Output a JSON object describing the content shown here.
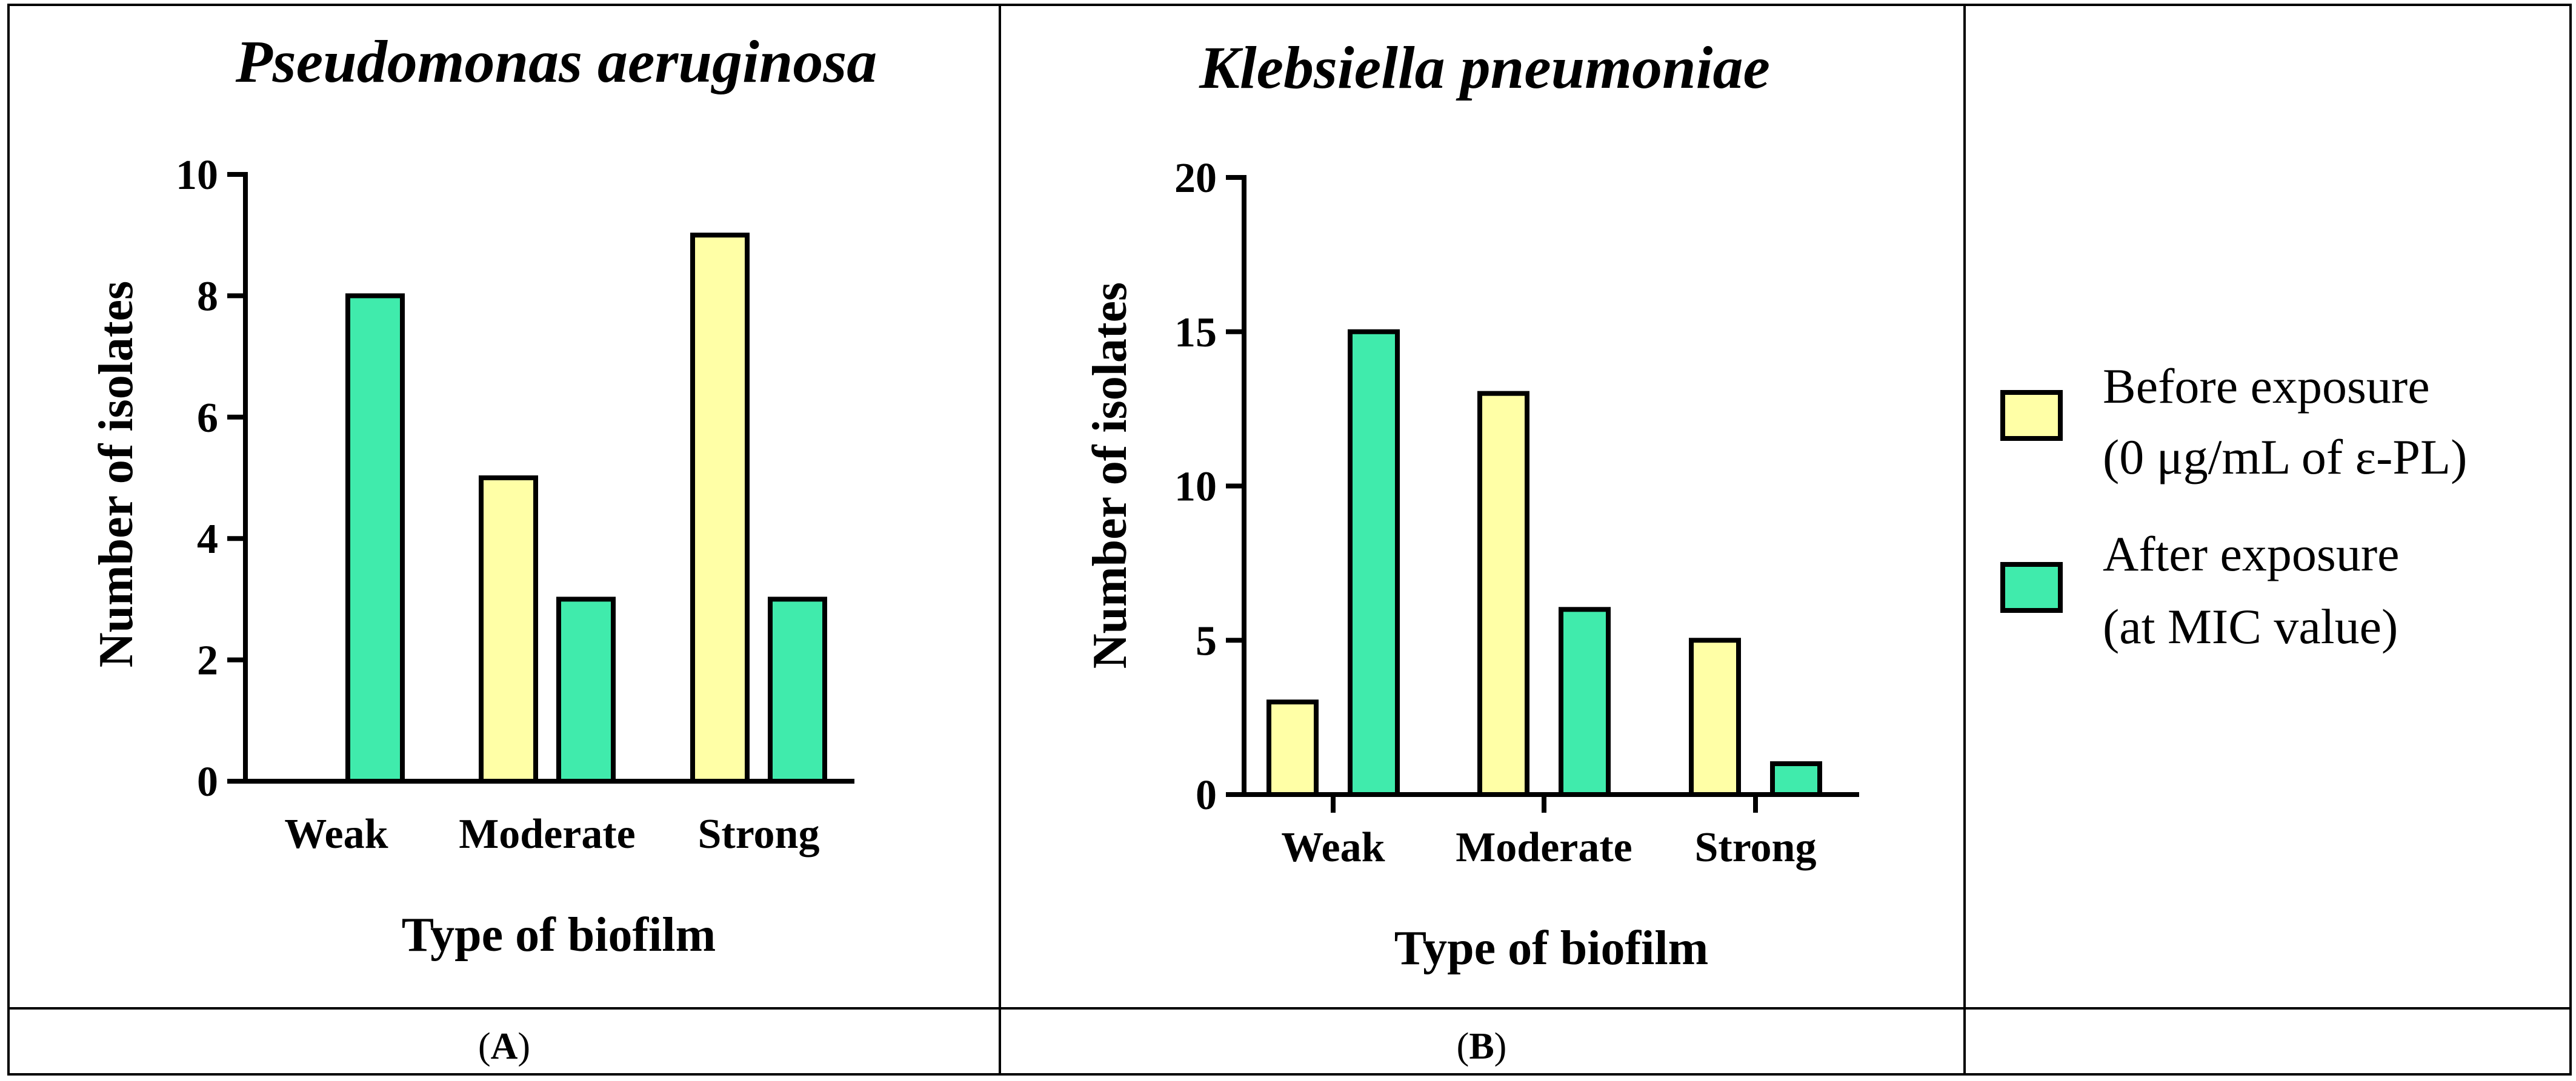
{
  "chart_data": [
    {
      "type": "bar",
      "title": "Pseudomonas aeruginosa",
      "xlabel": "Type of biofilm",
      "ylabel": "Number of isolates",
      "categories": [
        "Weak",
        "Moderate",
        "Strong"
      ],
      "ylim": [
        0,
        10
      ],
      "yticks": [
        0,
        2,
        4,
        6,
        8,
        10
      ],
      "series": [
        {
          "name": "Before exposure (0 μg/mL of ε-PL)",
          "color": "#FFFFA6",
          "values": [
            0,
            5,
            9
          ]
        },
        {
          "name": "After exposure (at MIC value)",
          "color": "#40EBAC",
          "values": [
            8,
            3,
            3
          ]
        }
      ],
      "panel_label": {
        "open": "(",
        "letter": "A",
        "close": ")"
      }
    },
    {
      "type": "bar",
      "title": "Klebsiella pneumoniae",
      "xlabel": "Type of biofilm",
      "ylabel": "Number of isolates",
      "categories": [
        "Weak",
        "Moderate",
        "Strong"
      ],
      "ylim": [
        0,
        20
      ],
      "yticks": [
        0,
        5,
        10,
        15,
        20
      ],
      "series": [
        {
          "name": "Before exposure (0 μg/mL of ε-PL)",
          "color": "#FFFFA6",
          "values": [
            3,
            13,
            5
          ]
        },
        {
          "name": "After exposure (at MIC value)",
          "color": "#40EBAC",
          "values": [
            15,
            6,
            1
          ]
        }
      ],
      "panel_label": {
        "open": "(",
        "letter": "B",
        "close": ")"
      }
    }
  ],
  "legend": {
    "items": [
      {
        "line1": "Before exposure",
        "line2": "(0 μg/mL of ε-PL)",
        "color": "#FFFFA6"
      },
      {
        "line1": "After exposure",
        "line2": "(at MIC value)",
        "color": "#40EBAC"
      }
    ]
  }
}
